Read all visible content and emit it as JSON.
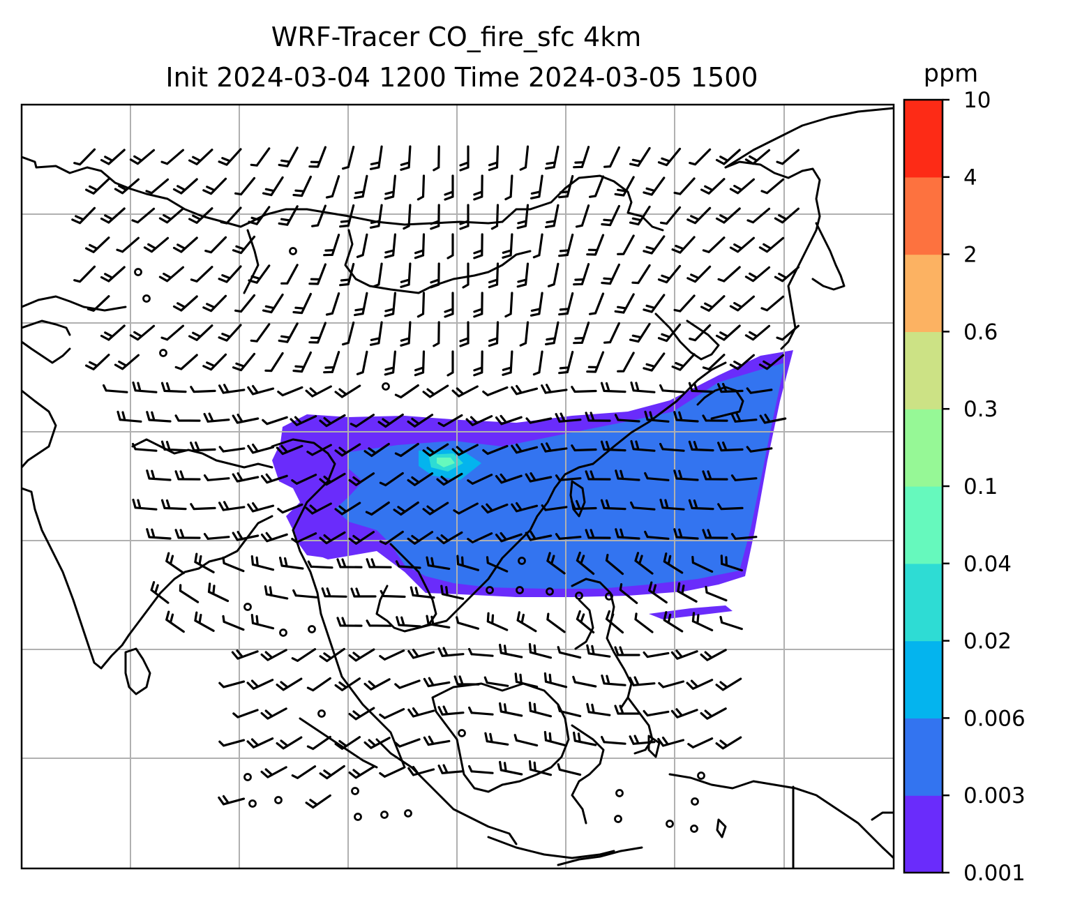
{
  "title": {
    "line1": "WRF-Tracer CO_fire_sfc 4km",
    "line2": "Init 2024-03-04 1200 Time 2024-03-05 1500"
  },
  "colorbar": {
    "unit": "ppm",
    "ticks": [
      "0.001",
      "0.003",
      "0.006",
      "0.02",
      "0.04",
      "0.1",
      "0.3",
      "0.6",
      "2",
      "4",
      "10"
    ],
    "colors": [
      "#6a2cfb",
      "#3374f0",
      "#04b4ee",
      "#2edcd4",
      "#66f9bd",
      "#96f896",
      "#cce285",
      "#fcb262",
      "#fd723f",
      "#fd2b16"
    ]
  },
  "map": {
    "field": "CO_fire_sfc",
    "resolution": "4km",
    "gridlines": true,
    "wind_barbs": true,
    "plume_colors": {
      "outer": "#6a2cfb",
      "inner": "#3374f0",
      "core": "#04b4ee",
      "hotspot": "#2edcd4",
      "peak": "#66f9bd"
    }
  }
}
